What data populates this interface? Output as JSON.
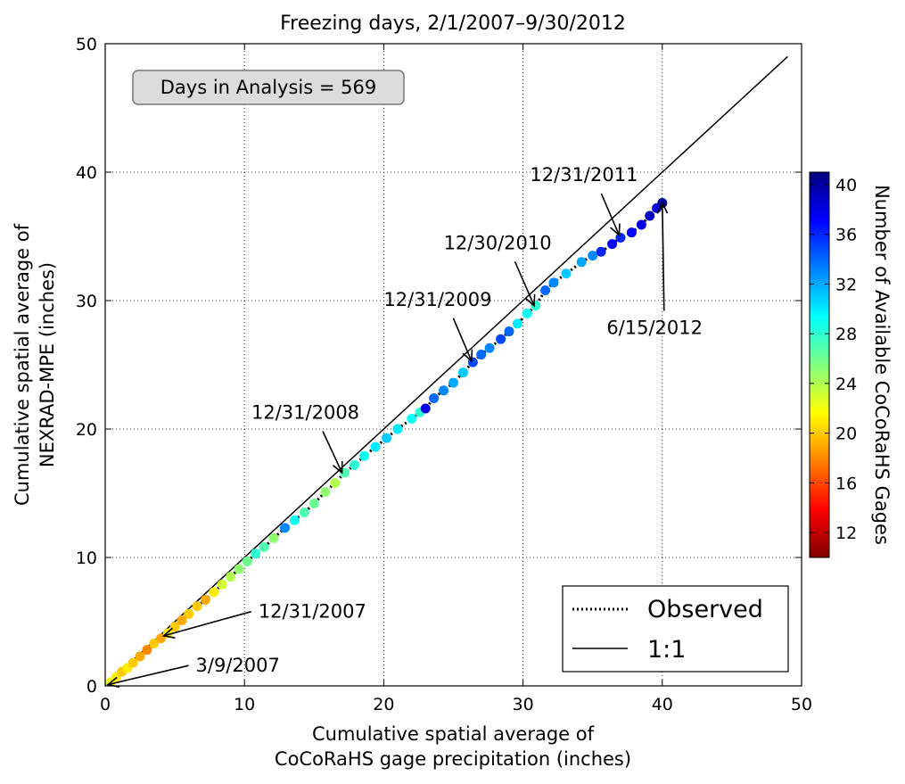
{
  "chart_data": {
    "type": "scatter",
    "title": "Freezing days, 2/1/2007–9/30/2012",
    "xlabel_lines": [
      "Cumulative spatial average of",
      "CoCoRaHS gage precipitation (inches)"
    ],
    "ylabel_lines": [
      "Cumulative spatial average of",
      "NEXRAD-MPE (inches)"
    ],
    "xlim": [
      0,
      50
    ],
    "ylim": [
      0,
      50
    ],
    "xticks": [
      0,
      10,
      20,
      30,
      40,
      50
    ],
    "yticks": [
      0,
      10,
      20,
      30,
      40,
      50
    ],
    "grid": true,
    "info_box": "Days in Analysis = 569",
    "legend": {
      "placement": "lower-right",
      "entries": [
        {
          "label": "Observed",
          "style": "dotted"
        },
        {
          "label": "1:1",
          "style": "solid"
        }
      ]
    },
    "one_to_one_line": {
      "x": [
        0,
        49
      ],
      "y": [
        0,
        49
      ]
    },
    "colorbar": {
      "label": "Number of Available CoCoRaHS Gages",
      "range": [
        10,
        41
      ],
      "ticks": [
        12,
        16,
        20,
        24,
        28,
        32,
        36,
        40
      ],
      "colormap": [
        "#800000",
        "#ff0000",
        "#ff8000",
        "#ffff00",
        "#80ff80",
        "#00ffff",
        "#0080ff",
        "#0000ff",
        "#000080"
      ]
    },
    "series": [
      {
        "name": "Observed",
        "points": [
          {
            "x": 0.1,
            "y": 0.1,
            "c": 24
          },
          {
            "x": 0.4,
            "y": 0.3,
            "c": 22
          },
          {
            "x": 0.8,
            "y": 0.7,
            "c": 21
          },
          {
            "x": 1.2,
            "y": 1.1,
            "c": 20
          },
          {
            "x": 1.6,
            "y": 1.4,
            "c": 21
          },
          {
            "x": 2.0,
            "y": 1.8,
            "c": 20
          },
          {
            "x": 2.5,
            "y": 2.3,
            "c": 19
          },
          {
            "x": 3.0,
            "y": 2.8,
            "c": 18
          },
          {
            "x": 3.5,
            "y": 3.3,
            "c": 20
          },
          {
            "x": 4.0,
            "y": 3.7,
            "c": 19
          },
          {
            "x": 4.5,
            "y": 4.1,
            "c": 21
          },
          {
            "x": 5.0,
            "y": 4.6,
            "c": 20
          },
          {
            "x": 5.5,
            "y": 5.1,
            "c": 19
          },
          {
            "x": 6.0,
            "y": 5.6,
            "c": 20
          },
          {
            "x": 6.6,
            "y": 6.2,
            "c": 20
          },
          {
            "x": 7.2,
            "y": 6.7,
            "c": 19
          },
          {
            "x": 7.8,
            "y": 7.3,
            "c": 21
          },
          {
            "x": 8.4,
            "y": 7.9,
            "c": 23
          },
          {
            "x": 9.0,
            "y": 8.5,
            "c": 24
          },
          {
            "x": 9.6,
            "y": 9.1,
            "c": 25
          },
          {
            "x": 10.2,
            "y": 9.7,
            "c": 26
          },
          {
            "x": 10.8,
            "y": 10.3,
            "c": 28
          },
          {
            "x": 11.4,
            "y": 10.8,
            "c": 27
          },
          {
            "x": 12.1,
            "y": 11.5,
            "c": 25
          },
          {
            "x": 12.9,
            "y": 12.3,
            "c": 33
          },
          {
            "x": 13.6,
            "y": 12.9,
            "c": 29
          },
          {
            "x": 14.3,
            "y": 13.5,
            "c": 27
          },
          {
            "x": 15.0,
            "y": 14.2,
            "c": 26
          },
          {
            "x": 15.8,
            "y": 15.1,
            "c": 25
          },
          {
            "x": 16.5,
            "y": 15.8,
            "c": 24
          },
          {
            "x": 17.2,
            "y": 16.6,
            "c": 27
          },
          {
            "x": 17.9,
            "y": 17.2,
            "c": 28
          },
          {
            "x": 18.6,
            "y": 17.9,
            "c": 29
          },
          {
            "x": 19.4,
            "y": 18.6,
            "c": 30
          },
          {
            "x": 20.2,
            "y": 19.3,
            "c": 31
          },
          {
            "x": 21.0,
            "y": 20.0,
            "c": 30
          },
          {
            "x": 22.0,
            "y": 20.8,
            "c": 29
          },
          {
            "x": 22.6,
            "y": 21.3,
            "c": 28
          },
          {
            "x": 23.0,
            "y": 21.6,
            "c": 38
          },
          {
            "x": 23.6,
            "y": 22.4,
            "c": 34
          },
          {
            "x": 24.3,
            "y": 23.0,
            "c": 33
          },
          {
            "x": 25.0,
            "y": 23.6,
            "c": 32
          },
          {
            "x": 25.7,
            "y": 24.4,
            "c": 31
          },
          {
            "x": 26.4,
            "y": 25.2,
            "c": 35
          },
          {
            "x": 27.0,
            "y": 25.8,
            "c": 34
          },
          {
            "x": 27.6,
            "y": 26.3,
            "c": 33
          },
          {
            "x": 28.4,
            "y": 27.0,
            "c": 35
          },
          {
            "x": 29.0,
            "y": 27.6,
            "c": 34
          },
          {
            "x": 29.6,
            "y": 28.2,
            "c": 30
          },
          {
            "x": 30.3,
            "y": 29.0,
            "c": 29
          },
          {
            "x": 30.9,
            "y": 29.6,
            "c": 28
          },
          {
            "x": 31.6,
            "y": 30.8,
            "c": 34
          },
          {
            "x": 32.2,
            "y": 31.4,
            "c": 33
          },
          {
            "x": 33.1,
            "y": 32.1,
            "c": 31
          },
          {
            "x": 34.2,
            "y": 33.0,
            "c": 32
          },
          {
            "x": 35.0,
            "y": 33.5,
            "c": 33
          },
          {
            "x": 35.6,
            "y": 33.8,
            "c": 36
          },
          {
            "x": 36.4,
            "y": 34.4,
            "c": 37
          },
          {
            "x": 37.0,
            "y": 34.9,
            "c": 36
          },
          {
            "x": 37.8,
            "y": 35.3,
            "c": 37
          },
          {
            "x": 38.5,
            "y": 35.9,
            "c": 38
          },
          {
            "x": 39.1,
            "y": 36.6,
            "c": 39
          },
          {
            "x": 39.6,
            "y": 37.2,
            "c": 38
          },
          {
            "x": 40.0,
            "y": 37.6,
            "c": 40
          }
        ]
      }
    ],
    "annotations": [
      {
        "text": "3/9/2007",
        "point": [
          0.2,
          0.1
        ],
        "text_at": [
          6.5,
          1.1
        ]
      },
      {
        "text": "12/31/2007",
        "point": [
          4.2,
          3.9
        ],
        "text_at": [
          11,
          5.3
        ]
      },
      {
        "text": "12/31/2008",
        "point": [
          17.0,
          16.6
        ],
        "text_at": [
          10.5,
          20.8
        ]
      },
      {
        "text": "12/31/2009",
        "point": [
          26.3,
          25.3
        ],
        "text_at": [
          20,
          29.6
        ]
      },
      {
        "text": "12/30/2010",
        "point": [
          30.8,
          29.6
        ],
        "text_at": [
          24.3,
          34.0
        ]
      },
      {
        "text": "12/31/2011",
        "point": [
          36.9,
          35.1
        ],
        "text_at": [
          30.5,
          39.3
        ]
      },
      {
        "text": "6/15/2012",
        "point": [
          40.0,
          37.6
        ],
        "text_at": [
          36,
          27.4
        ]
      }
    ]
  }
}
